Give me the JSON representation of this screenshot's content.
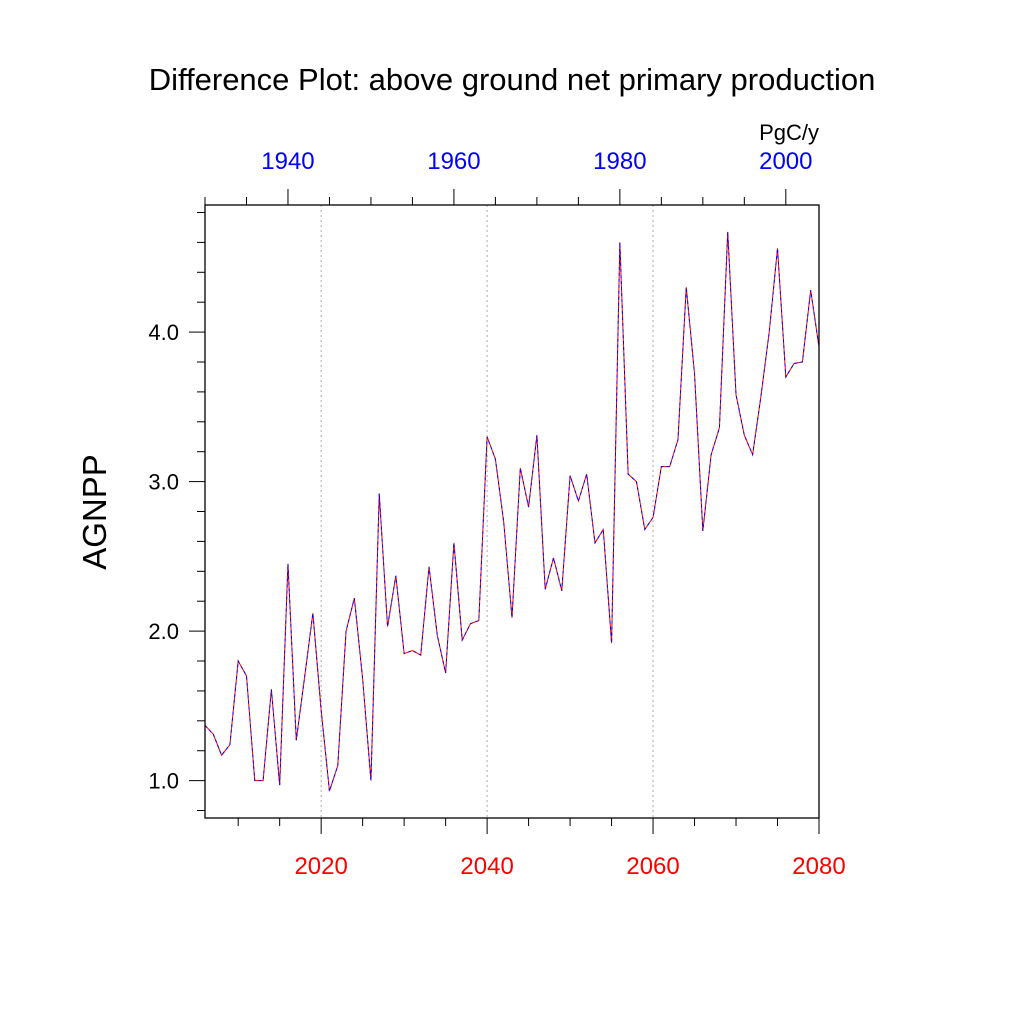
{
  "chart_data": {
    "type": "line",
    "title": "Difference Plot: above ground net primary production",
    "ylabel": "AGNPP",
    "units": "PgC/y",
    "x_bottom": {
      "range": [
        2006,
        2080
      ],
      "ticks": [
        2020,
        2040,
        2060,
        2080
      ],
      "tick_labels": [
        "2020",
        "2040",
        "2060",
        "2080"
      ],
      "color": "#ff0000"
    },
    "x_top": {
      "range": [
        1930,
        2004
      ],
      "ticks": [
        1940,
        1960,
        1980,
        2000
      ],
      "tick_labels": [
        "1940",
        "1960",
        "1980",
        "2000"
      ],
      "color": "#0000ff"
    },
    "ylim": [
      0.75,
      4.85
    ],
    "yticks": [
      1.0,
      2.0,
      3.0,
      4.0
    ],
    "ytick_labels": [
      "1.0",
      "2.0",
      "3.0",
      "4.0"
    ],
    "grid": "vertical dotted at major bottom ticks",
    "series": [
      {
        "name": "red-series",
        "color": "#ff0000",
        "style": "solid",
        "x": [
          2006,
          2007,
          2008,
          2009,
          2010,
          2011,
          2012,
          2013,
          2014,
          2015,
          2016,
          2017,
          2018,
          2019,
          2020,
          2021,
          2022,
          2023,
          2024,
          2025,
          2026,
          2027,
          2028,
          2029,
          2030,
          2031,
          2032,
          2033,
          2034,
          2035,
          2036,
          2037,
          2038,
          2039,
          2040,
          2041,
          2042,
          2043,
          2044,
          2045,
          2046,
          2047,
          2048,
          2049,
          2050,
          2051,
          2052,
          2053,
          2054,
          2055,
          2056,
          2057,
          2058,
          2059,
          2060,
          2061,
          2062,
          2063,
          2064,
          2065,
          2066,
          2067,
          2068,
          2069,
          2070,
          2071,
          2072,
          2073,
          2074,
          2075,
          2076,
          2077,
          2078,
          2079,
          2080
        ],
        "values": [
          1.37,
          1.31,
          1.17,
          1.24,
          1.8,
          1.7,
          1.0,
          1.0,
          1.61,
          0.97,
          2.45,
          1.27,
          1.69,
          2.12,
          1.47,
          0.93,
          1.1,
          2.0,
          2.22,
          1.68,
          1.0,
          2.92,
          2.03,
          2.37,
          1.85,
          1.87,
          1.84,
          2.43,
          1.97,
          1.72,
          2.59,
          1.94,
          2.05,
          2.07,
          3.3,
          3.15,
          2.73,
          2.09,
          3.09,
          2.83,
          3.31,
          2.28,
          2.49,
          2.27,
          3.04,
          2.87,
          3.05,
          2.59,
          2.68,
          1.92,
          4.6,
          3.05,
          3.0,
          2.68,
          2.76,
          3.1,
          3.1,
          3.28,
          4.3,
          3.72,
          2.67,
          3.18,
          3.36,
          4.67,
          3.58,
          3.31,
          3.18,
          3.57,
          4.0,
          4.56,
          3.7,
          3.79,
          3.8,
          4.28,
          3.9
        ]
      },
      {
        "name": "blue-series",
        "color": "#0000ff",
        "style": "dashed",
        "x": [
          2006,
          2007,
          2008,
          2009,
          2010,
          2011,
          2012,
          2013,
          2014,
          2015,
          2016,
          2017,
          2018,
          2019,
          2020,
          2021,
          2022,
          2023,
          2024,
          2025,
          2026,
          2027,
          2028,
          2029,
          2030,
          2031,
          2032,
          2033,
          2034,
          2035,
          2036,
          2037,
          2038,
          2039,
          2040,
          2041,
          2042,
          2043,
          2044,
          2045,
          2046,
          2047,
          2048,
          2049,
          2050,
          2051,
          2052,
          2053,
          2054,
          2055,
          2056,
          2057,
          2058,
          2059,
          2060,
          2061,
          2062,
          2063,
          2064,
          2065,
          2066,
          2067,
          2068,
          2069,
          2070,
          2071,
          2072,
          2073,
          2074,
          2075,
          2076,
          2077,
          2078,
          2079,
          2080
        ],
        "values": [
          1.37,
          1.31,
          1.17,
          1.24,
          1.8,
          1.7,
          1.0,
          1.0,
          1.61,
          0.97,
          2.45,
          1.27,
          1.69,
          2.12,
          1.47,
          0.93,
          1.1,
          2.0,
          2.22,
          1.68,
          1.0,
          2.92,
          2.03,
          2.37,
          1.85,
          1.87,
          1.84,
          2.43,
          1.97,
          1.72,
          2.59,
          1.94,
          2.05,
          2.07,
          3.3,
          3.15,
          2.73,
          2.09,
          3.09,
          2.83,
          3.31,
          2.28,
          2.49,
          2.27,
          3.04,
          2.87,
          3.05,
          2.59,
          2.68,
          1.92,
          4.6,
          3.05,
          3.0,
          2.68,
          2.76,
          3.1,
          3.1,
          3.28,
          4.3,
          3.72,
          2.67,
          3.18,
          3.36,
          4.67,
          3.58,
          3.31,
          3.18,
          3.57,
          4.0,
          4.56,
          3.7,
          3.79,
          3.8,
          4.28,
          3.9
        ]
      }
    ]
  }
}
